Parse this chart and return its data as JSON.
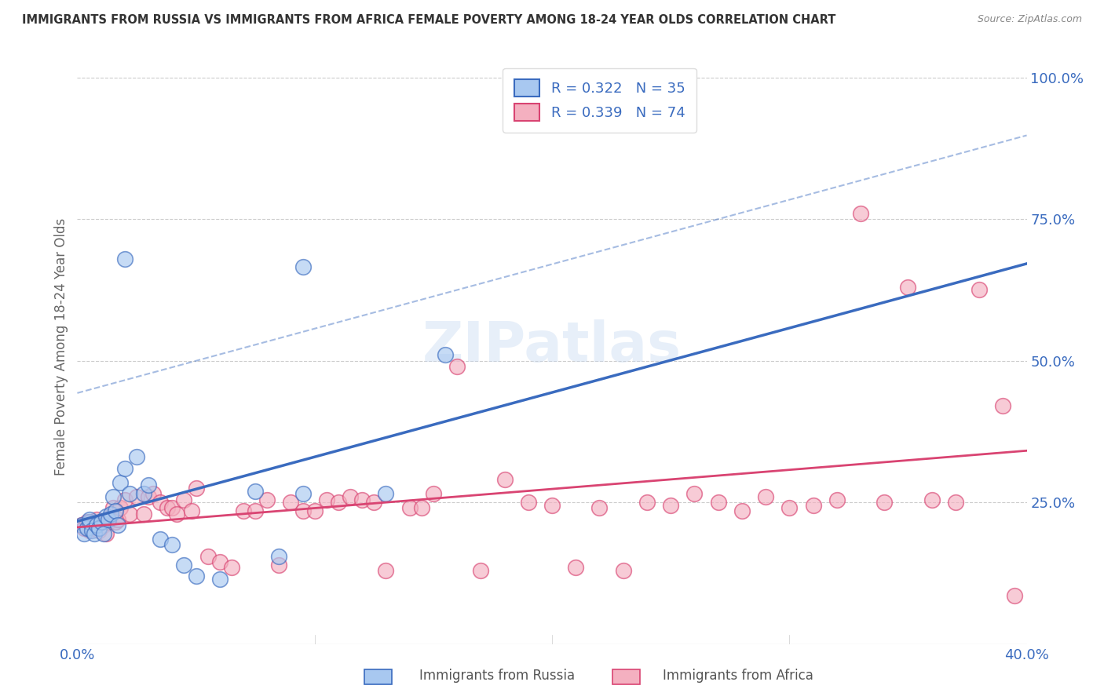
{
  "title": "IMMIGRANTS FROM RUSSIA VS IMMIGRANTS FROM AFRICA FEMALE POVERTY AMONG 18-24 YEAR OLDS CORRELATION CHART",
  "source": "Source: ZipAtlas.com",
  "ylabel": "Female Poverty Among 18-24 Year Olds",
  "xlim": [
    0.0,
    0.4
  ],
  "ylim": [
    0.0,
    1.05
  ],
  "yticks": [
    0.0,
    0.25,
    0.5,
    0.75,
    1.0
  ],
  "ytick_labels": [
    "",
    "25.0%",
    "50.0%",
    "75.0%",
    "100.0%"
  ],
  "xticks": [
    0.0,
    0.1,
    0.2,
    0.3,
    0.4
  ],
  "xtick_labels": [
    "0.0%",
    "",
    "",
    "",
    "40.0%"
  ],
  "russia_color": "#a8c8f0",
  "africa_color": "#f4b0c0",
  "russia_line_color": "#3a6bbf",
  "africa_line_color": "#d94472",
  "russia_R": 0.322,
  "russia_N": 35,
  "africa_R": 0.339,
  "africa_N": 74,
  "watermark": "ZIPatlas",
  "background_color": "#ffffff",
  "russia_scatter_x": [
    0.002,
    0.003,
    0.004,
    0.005,
    0.005,
    0.006,
    0.007,
    0.008,
    0.009,
    0.01,
    0.011,
    0.012,
    0.013,
    0.014,
    0.015,
    0.016,
    0.017,
    0.018,
    0.02,
    0.022,
    0.025,
    0.028,
    0.03,
    0.035,
    0.04,
    0.045,
    0.05,
    0.06,
    0.075,
    0.085,
    0.095,
    0.13,
    0.155,
    0.02,
    0.095
  ],
  "russia_scatter_y": [
    0.21,
    0.195,
    0.205,
    0.215,
    0.22,
    0.2,
    0.195,
    0.21,
    0.205,
    0.215,
    0.195,
    0.225,
    0.22,
    0.23,
    0.26,
    0.235,
    0.21,
    0.285,
    0.31,
    0.265,
    0.33,
    0.265,
    0.28,
    0.185,
    0.175,
    0.14,
    0.12,
    0.115,
    0.27,
    0.155,
    0.665,
    0.265,
    0.51,
    0.68,
    0.265
  ],
  "africa_scatter_x": [
    0.002,
    0.003,
    0.004,
    0.005,
    0.006,
    0.007,
    0.008,
    0.009,
    0.01,
    0.011,
    0.012,
    0.013,
    0.014,
    0.015,
    0.016,
    0.017,
    0.018,
    0.02,
    0.022,
    0.025,
    0.028,
    0.03,
    0.032,
    0.035,
    0.038,
    0.04,
    0.042,
    0.045,
    0.048,
    0.05,
    0.055,
    0.06,
    0.065,
    0.07,
    0.075,
    0.08,
    0.085,
    0.09,
    0.095,
    0.1,
    0.105,
    0.11,
    0.115,
    0.12,
    0.125,
    0.13,
    0.14,
    0.145,
    0.15,
    0.16,
    0.17,
    0.18,
    0.19,
    0.2,
    0.21,
    0.22,
    0.23,
    0.24,
    0.25,
    0.26,
    0.27,
    0.28,
    0.29,
    0.3,
    0.31,
    0.32,
    0.33,
    0.34,
    0.35,
    0.36,
    0.37,
    0.38,
    0.39,
    0.395
  ],
  "africa_scatter_y": [
    0.21,
    0.205,
    0.215,
    0.2,
    0.215,
    0.205,
    0.22,
    0.2,
    0.215,
    0.21,
    0.195,
    0.215,
    0.225,
    0.24,
    0.215,
    0.22,
    0.24,
    0.255,
    0.23,
    0.26,
    0.23,
    0.26,
    0.265,
    0.25,
    0.24,
    0.24,
    0.23,
    0.255,
    0.235,
    0.275,
    0.155,
    0.145,
    0.135,
    0.235,
    0.235,
    0.255,
    0.14,
    0.25,
    0.235,
    0.235,
    0.255,
    0.25,
    0.26,
    0.255,
    0.25,
    0.13,
    0.24,
    0.24,
    0.265,
    0.49,
    0.13,
    0.29,
    0.25,
    0.245,
    0.135,
    0.24,
    0.13,
    0.25,
    0.245,
    0.265,
    0.25,
    0.235,
    0.26,
    0.24,
    0.245,
    0.255,
    0.76,
    0.25,
    0.63,
    0.255,
    0.25,
    0.625,
    0.42,
    0.085
  ]
}
